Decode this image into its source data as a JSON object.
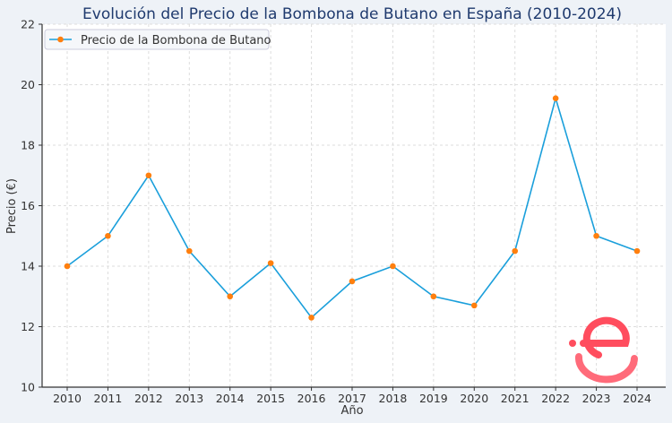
{
  "chart_data": {
    "type": "line",
    "title": "Evolución del Precio de la Bombona de Butano en España (2010-2024)",
    "xlabel": "Año",
    "ylabel": "Precio (€)",
    "x": [
      2010,
      2011,
      2012,
      2013,
      2014,
      2015,
      2016,
      2017,
      2018,
      2019,
      2020,
      2021,
      2022,
      2023,
      2024
    ],
    "series": [
      {
        "name": "Precio de la Bombona de Butano",
        "values": [
          14.0,
          15.0,
          17.0,
          14.5,
          13.0,
          14.1,
          12.3,
          13.5,
          14.0,
          13.0,
          12.7,
          14.5,
          19.55,
          15.0,
          14.5
        ]
      }
    ],
    "ylim": [
      10,
      22
    ],
    "yticks": [
      10,
      12,
      14,
      16,
      18,
      20,
      22
    ],
    "grid": true,
    "legend_position": "top-left",
    "colors": {
      "line": "#1a9fdb",
      "marker": "#ff7f0e",
      "title": "#1f3a6e",
      "logo": "#ff4d5e"
    }
  }
}
